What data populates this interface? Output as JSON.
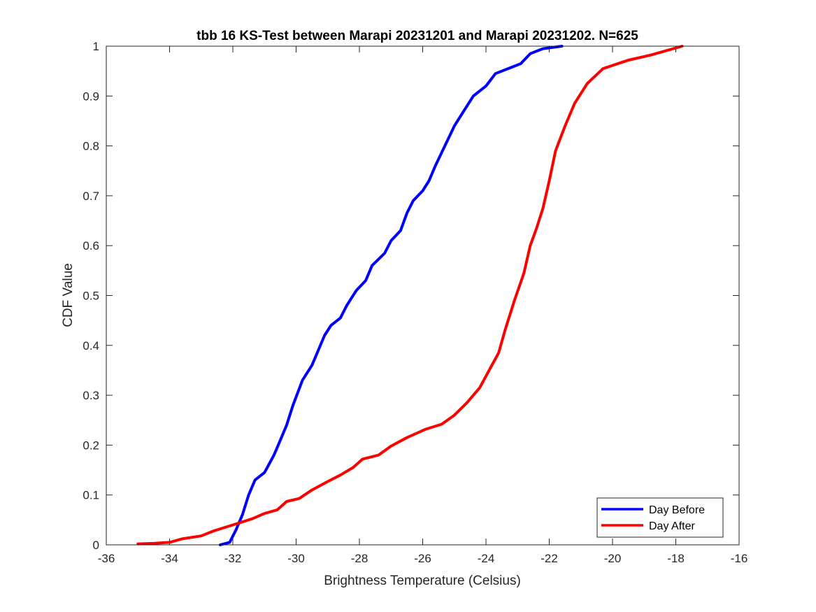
{
  "chart_data": {
    "type": "line",
    "title": "tbb 16 KS-Test between Marapi 20231201 and Marapi 20231202. N=625",
    "xlabel": "Brightness Temperature (Celsius)",
    "ylabel": "CDF Value",
    "xlim": [
      -36,
      -16
    ],
    "ylim": [
      0,
      1
    ],
    "xticks": [
      -36,
      -34,
      -32,
      -30,
      -28,
      -26,
      -24,
      -22,
      -20,
      -18,
      -16
    ],
    "yticks": [
      0,
      0.1,
      0.2,
      0.3,
      0.4,
      0.5,
      0.6,
      0.7,
      0.8,
      0.9,
      1
    ],
    "xtick_labels": [
      "-36",
      "-34",
      "-32",
      "-30",
      "-28",
      "-26",
      "-24",
      "-22",
      "-20",
      "-18",
      "-16"
    ],
    "ytick_labels": [
      "0",
      "0.1",
      "0.2",
      "0.3",
      "0.4",
      "0.5",
      "0.6",
      "0.7",
      "0.8",
      "0.9",
      "1"
    ],
    "grid": false,
    "legend_position": "bottom-right",
    "series": [
      {
        "name": "Day Before",
        "color": "#0000ff",
        "points": [
          [
            -32.4,
            0.0
          ],
          [
            -32.1,
            0.005
          ],
          [
            -31.9,
            0.03
          ],
          [
            -31.7,
            0.06
          ],
          [
            -31.5,
            0.1
          ],
          [
            -31.3,
            0.13
          ],
          [
            -31.0,
            0.145
          ],
          [
            -30.7,
            0.18
          ],
          [
            -30.5,
            0.21
          ],
          [
            -30.3,
            0.24
          ],
          [
            -30.1,
            0.28
          ],
          [
            -29.8,
            0.33
          ],
          [
            -29.5,
            0.36
          ],
          [
            -29.3,
            0.39
          ],
          [
            -29.1,
            0.42
          ],
          [
            -28.9,
            0.44
          ],
          [
            -28.6,
            0.455
          ],
          [
            -28.4,
            0.48
          ],
          [
            -28.1,
            0.51
          ],
          [
            -27.8,
            0.53
          ],
          [
            -27.6,
            0.56
          ],
          [
            -27.2,
            0.585
          ],
          [
            -27.0,
            0.61
          ],
          [
            -26.7,
            0.63
          ],
          [
            -26.5,
            0.665
          ],
          [
            -26.3,
            0.69
          ],
          [
            -26.0,
            0.71
          ],
          [
            -25.8,
            0.73
          ],
          [
            -25.6,
            0.76
          ],
          [
            -25.3,
            0.8
          ],
          [
            -25.0,
            0.84
          ],
          [
            -24.7,
            0.87
          ],
          [
            -24.4,
            0.9
          ],
          [
            -24.0,
            0.92
          ],
          [
            -23.7,
            0.945
          ],
          [
            -23.3,
            0.955
          ],
          [
            -22.9,
            0.965
          ],
          [
            -22.6,
            0.985
          ],
          [
            -22.2,
            0.995
          ],
          [
            -21.6,
            1.0
          ]
        ]
      },
      {
        "name": "Day After",
        "color": "#ff0000",
        "points": [
          [
            -35.0,
            0.002
          ],
          [
            -34.5,
            0.003
          ],
          [
            -34.0,
            0.005
          ],
          [
            -33.6,
            0.012
          ],
          [
            -33.0,
            0.018
          ],
          [
            -32.6,
            0.028
          ],
          [
            -32.0,
            0.04
          ],
          [
            -31.4,
            0.052
          ],
          [
            -31.0,
            0.063
          ],
          [
            -30.6,
            0.07
          ],
          [
            -30.3,
            0.087
          ],
          [
            -29.9,
            0.093
          ],
          [
            -29.5,
            0.11
          ],
          [
            -29.0,
            0.127
          ],
          [
            -28.6,
            0.14
          ],
          [
            -28.2,
            0.155
          ],
          [
            -27.9,
            0.172
          ],
          [
            -27.4,
            0.18
          ],
          [
            -27.0,
            0.198
          ],
          [
            -26.5,
            0.215
          ],
          [
            -25.9,
            0.232
          ],
          [
            -25.4,
            0.242
          ],
          [
            -25.0,
            0.26
          ],
          [
            -24.6,
            0.285
          ],
          [
            -24.2,
            0.315
          ],
          [
            -23.9,
            0.35
          ],
          [
            -23.6,
            0.385
          ],
          [
            -23.4,
            0.43
          ],
          [
            -23.1,
            0.49
          ],
          [
            -22.8,
            0.545
          ],
          [
            -22.6,
            0.6
          ],
          [
            -22.4,
            0.635
          ],
          [
            -22.2,
            0.675
          ],
          [
            -22.0,
            0.73
          ],
          [
            -21.8,
            0.79
          ],
          [
            -21.5,
            0.84
          ],
          [
            -21.2,
            0.885
          ],
          [
            -20.8,
            0.925
          ],
          [
            -20.3,
            0.955
          ],
          [
            -19.5,
            0.972
          ],
          [
            -18.8,
            0.982
          ],
          [
            -17.8,
            1.0
          ]
        ]
      }
    ]
  }
}
